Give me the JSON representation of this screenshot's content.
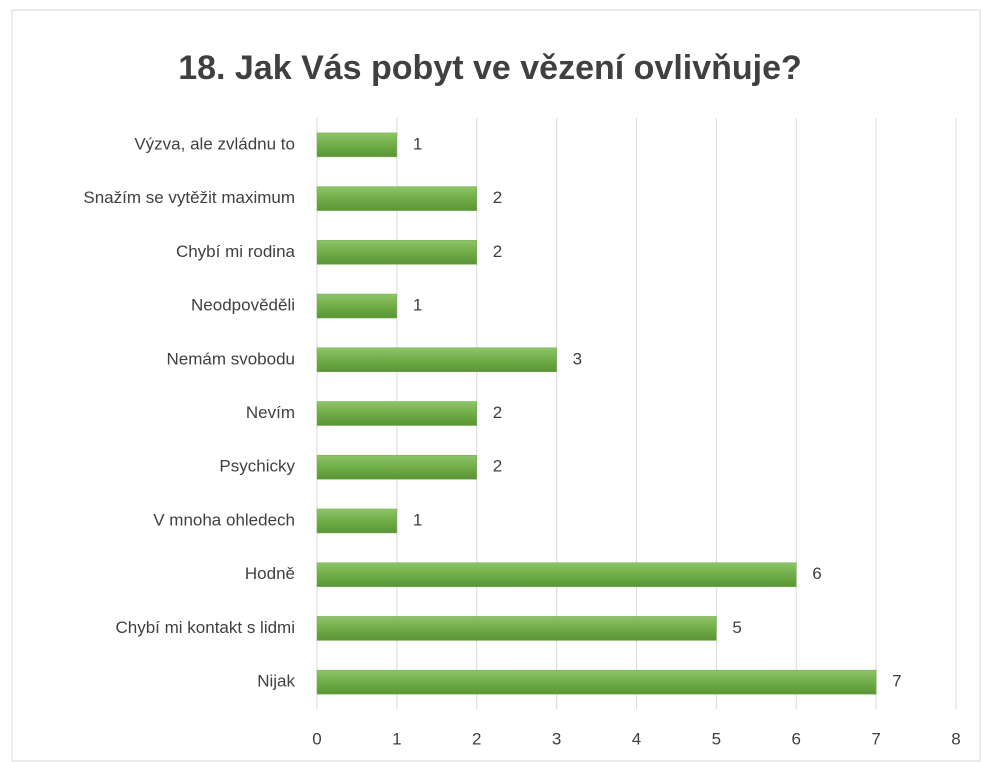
{
  "chart_data": {
    "type": "bar",
    "title": "18. Jak Vás pobyt ve vězení ovlivňuje?",
    "categories": [
      "Výzva, ale zvládnu to",
      "Snažím se vytěžit maximum",
      "Chybí mi rodina",
      "Neodpověděli",
      "Nemám svobodu",
      "Nevím",
      "Psychicky",
      "V mnoha ohledech",
      "Hodně",
      "Chybí mi kontakt s lidmi",
      "Nijak"
    ],
    "values": [
      1,
      2,
      2,
      1,
      3,
      2,
      2,
      1,
      6,
      5,
      7
    ],
    "color": "#70ad47",
    "xlim": [
      0,
      8
    ],
    "xticks": [
      0,
      1,
      2,
      3,
      4,
      5,
      6,
      7,
      8
    ],
    "grid": true
  }
}
